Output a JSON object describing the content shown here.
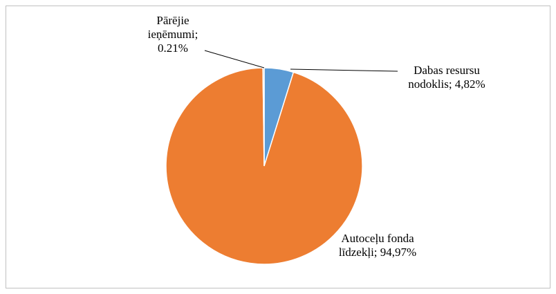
{
  "chart_data": {
    "type": "pie",
    "values": [
      4.82,
      94.97,
      0.21
    ],
    "value_labels": [
      "Dabas resursu nodoklis; 4,82%",
      "Autoceļu fonda līdzekļi; 94,97%",
      "Pārējie ieņēmumi; 0.21%"
    ],
    "colors": [
      "#5b9bd5",
      "#ed7d31",
      "#a5a5a5"
    ]
  }
}
